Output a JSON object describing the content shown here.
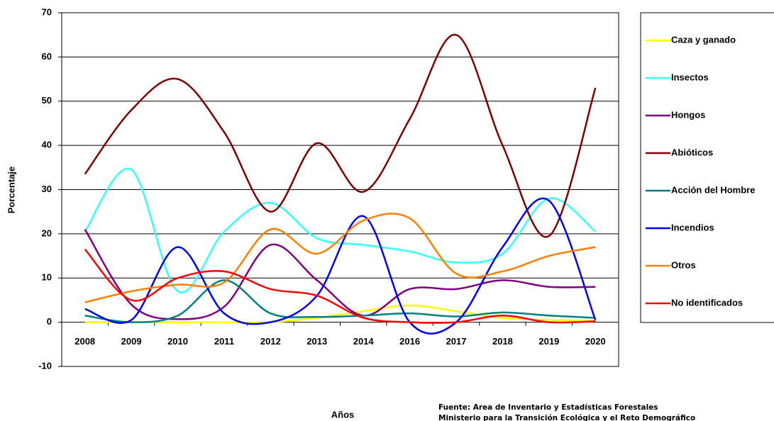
{
  "chart_data": {
    "type": "line",
    "x_label": "Años",
    "y_label": "Porcentaje",
    "notes": [
      "Fuente: Area de Inventario y Estadísticas Forestales",
      "Ministerio para la Transición Ecológica y el Reto Demográfico"
    ],
    "categories": [
      "2008",
      "2009",
      "2010",
      "2011",
      "2012",
      "2013",
      "2014",
      "2016",
      "2017",
      "2018",
      "2019",
      "2020"
    ],
    "ylim": [
      -10,
      70
    ],
    "yticks": [
      -10,
      0,
      10,
      20,
      30,
      40,
      50,
      60,
      70
    ],
    "grid": true,
    "smooth": true,
    "legend": "right",
    "series": [
      {
        "name": "Caza y ganado",
        "color": "#ffff00",
        "values": [
          0,
          0,
          0,
          0,
          0,
          1,
          2.5,
          3.8,
          2.5,
          1,
          0.5,
          0.3
        ]
      },
      {
        "name": "Insectos",
        "color": "#33ffff",
        "values": [
          20.5,
          34.5,
          7,
          20.5,
          27,
          19,
          17.5,
          16,
          13.5,
          15.5,
          28,
          20.5
        ]
      },
      {
        "name": "Hongos",
        "color": "#800080",
        "values": [
          21,
          4,
          0.7,
          3.5,
          17.5,
          9.5,
          1.5,
          7.5,
          7.5,
          9.5,
          8,
          8
        ]
      },
      {
        "name": "Abióticos",
        "color": "#800000",
        "values": [
          33.5,
          48,
          55,
          43,
          25,
          40.5,
          29.5,
          46,
          65,
          40,
          19.5,
          53
        ]
      },
      {
        "name": "Acción del Hombre",
        "color": "#008080",
        "values": [
          1.5,
          0,
          1.5,
          9.5,
          2,
          1.2,
          1.5,
          2,
          1.3,
          2.2,
          1.5,
          1
        ]
      },
      {
        "name": "Incendios",
        "color": "#0000ff",
        "values": [
          3,
          0.5,
          17,
          2,
          0,
          6,
          24,
          0,
          0,
          17,
          27.5,
          0.5
        ]
      },
      {
        "name": "Otros",
        "color": "#ff8000",
        "values": [
          4.5,
          7,
          8.5,
          9,
          21,
          15.5,
          23,
          23.5,
          11,
          11.5,
          15,
          17
        ]
      },
      {
        "name": "No identificados",
        "color": "#ff0000",
        "values": [
          16.5,
          5,
          10,
          11.5,
          7.5,
          6,
          1,
          0,
          0,
          1.5,
          0,
          0.2
        ]
      }
    ]
  }
}
